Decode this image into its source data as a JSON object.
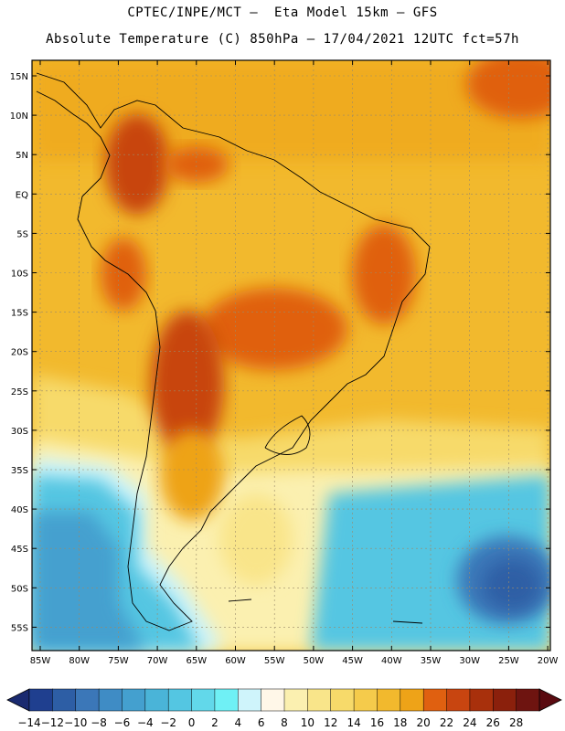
{
  "header": {
    "line1": "CPTEC/INPE/MCT –  Eta Model 15km – GFS",
    "line2": "Absolute Temperature (C) 850hPa – 17/04/2021 12UTC fct=57h"
  },
  "map": {
    "lon_labels": [
      "85W",
      "80W",
      "75W",
      "70W",
      "65W",
      "60W",
      "55W",
      "50W",
      "45W",
      "40W",
      "35W",
      "30W",
      "25W",
      "20W"
    ],
    "lat_labels": [
      "15N",
      "10N",
      "5N",
      "EQ",
      "5S",
      "10S",
      "15S",
      "20S",
      "25S",
      "30S",
      "35S",
      "40S",
      "45S",
      "50S",
      "55S"
    ]
  },
  "colorbar": {
    "labels": [
      "-14",
      "-12",
      "-10",
      "-8",
      "-6",
      "-4",
      "-2",
      "0",
      "2",
      "4",
      "6",
      "8",
      "10",
      "12",
      "14",
      "16",
      "18",
      "20",
      "22",
      "24",
      "26",
      "28"
    ],
    "colors": [
      "#1f3f8f",
      "#2d5ea5",
      "#3b77b8",
      "#3f8cc5",
      "#44a0cf",
      "#4ab4d8",
      "#54c6e2",
      "#62d8ea",
      "#6ff0f5",
      "#cff4fb",
      "#fff7e8",
      "#fbf0b0",
      "#f9e58a",
      "#f7da6a",
      "#f5cb4b",
      "#f2b92d",
      "#eea318",
      "#e06010",
      "#c84510",
      "#a8300c",
      "#8b200c",
      "#6e1410"
    ]
  }
}
